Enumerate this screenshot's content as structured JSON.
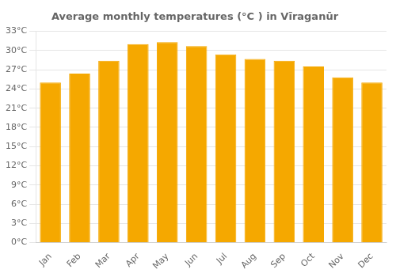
{
  "chart_data": {
    "type": "bar",
    "title": "Average monthly temperatures (°C ) in Vīraganūr",
    "categories": [
      "Jan",
      "Feb",
      "Mar",
      "Apr",
      "May",
      "Jun",
      "Jul",
      "Aug",
      "Sep",
      "Oct",
      "Nov",
      "Dec"
    ],
    "values": [
      25.0,
      26.4,
      28.4,
      31.0,
      31.3,
      30.7,
      29.4,
      28.7,
      28.4,
      27.5,
      25.8,
      25.0
    ],
    "color": "#F5A800",
    "ylim": [
      0,
      33
    ],
    "yticks": [
      {
        "value": 0,
        "label": "0°C"
      },
      {
        "value": 3,
        "label": "3°C"
      },
      {
        "value": 6,
        "label": "6°C"
      },
      {
        "value": 9,
        "label": "9°C"
      },
      {
        "value": 12,
        "label": "12°C"
      },
      {
        "value": 15,
        "label": "15°C"
      },
      {
        "value": 18,
        "label": "18°C"
      },
      {
        "value": 21,
        "label": "21°C"
      },
      {
        "value": 24,
        "label": "24°C"
      },
      {
        "value": 27,
        "label": "27°C"
      },
      {
        "value": 30,
        "label": "30°C"
      },
      {
        "value": 33,
        "label": "33°C"
      }
    ],
    "grid": true
  }
}
